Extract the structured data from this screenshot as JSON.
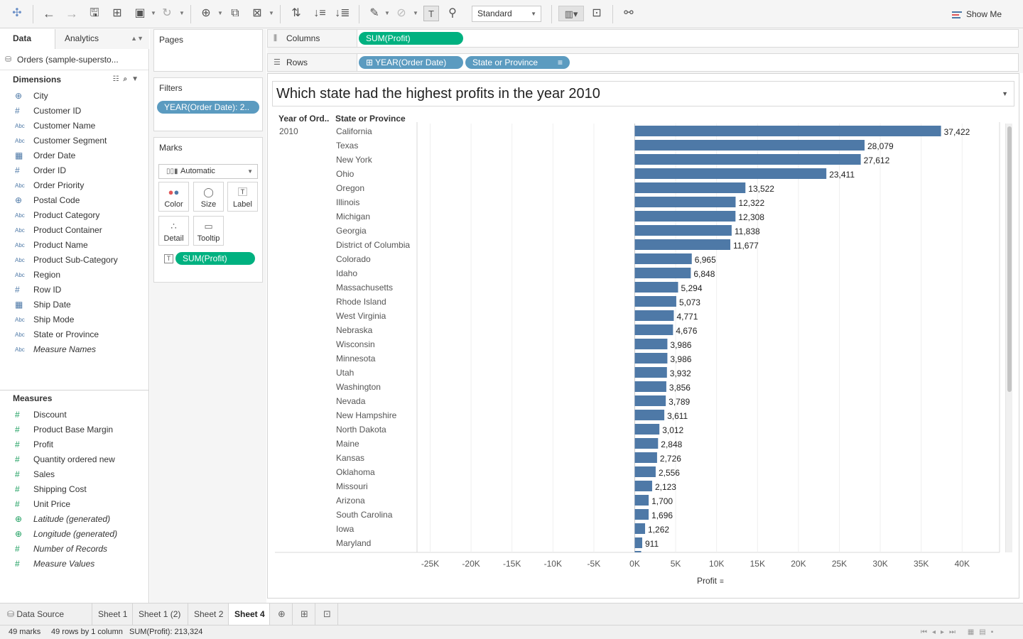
{
  "toolbar": {
    "fit_mode": "Standard",
    "show_me": "Show Me",
    "icons": [
      "tableau-logo-icon",
      "undo-icon",
      "redo-icon",
      "save-icon",
      "new-data-source-icon",
      "pause-updates-icon",
      "refresh-icon",
      "new-worksheet-icon",
      "duplicate-sheet-icon",
      "clear-sheet-icon",
      "swap-icon",
      "sort-ascending-icon",
      "sort-descending-icon",
      "highlight-icon",
      "group-icon",
      "show-labels-icon",
      "fix-axes-icon",
      "fit-icon",
      "presentation-icon",
      "share-icon"
    ]
  },
  "data_pane": {
    "tab_data": "Data",
    "tab_analytics": "Analytics",
    "datasource": "Orders (sample-supersto...",
    "dimensions_title": "Dimensions",
    "dimensions": [
      {
        "label": "City",
        "type": "geo"
      },
      {
        "label": "Customer ID",
        "type": "num"
      },
      {
        "label": "Customer Name",
        "type": "abc"
      },
      {
        "label": "Customer Segment",
        "type": "abc"
      },
      {
        "label": "Order Date",
        "type": "date"
      },
      {
        "label": "Order ID",
        "type": "num"
      },
      {
        "label": "Order Priority",
        "type": "abc"
      },
      {
        "label": "Postal Code",
        "type": "geo"
      },
      {
        "label": "Product Category",
        "type": "abc"
      },
      {
        "label": "Product Container",
        "type": "abc"
      },
      {
        "label": "Product Name",
        "type": "abc"
      },
      {
        "label": "Product Sub-Category",
        "type": "abc"
      },
      {
        "label": "Region",
        "type": "abc"
      },
      {
        "label": "Row ID",
        "type": "num"
      },
      {
        "label": "Ship Date",
        "type": "date"
      },
      {
        "label": "Ship Mode",
        "type": "abc"
      },
      {
        "label": "State or Province",
        "type": "abc"
      },
      {
        "label": "Measure Names",
        "type": "abc",
        "italic": true
      }
    ],
    "measures_title": "Measures",
    "measures": [
      {
        "label": "Discount",
        "type": "num"
      },
      {
        "label": "Product Base Margin",
        "type": "num"
      },
      {
        "label": "Profit",
        "type": "num"
      },
      {
        "label": "Quantity ordered new",
        "type": "num"
      },
      {
        "label": "Sales",
        "type": "num"
      },
      {
        "label": "Shipping Cost",
        "type": "num"
      },
      {
        "label": "Unit Price",
        "type": "num"
      },
      {
        "label": "Latitude (generated)",
        "type": "geo",
        "italic": true
      },
      {
        "label": "Longitude (generated)",
        "type": "geo",
        "italic": true
      },
      {
        "label": "Number of Records",
        "type": "num",
        "italic": true
      },
      {
        "label": "Measure Values",
        "type": "num",
        "italic": true
      }
    ]
  },
  "cards": {
    "pages_title": "Pages",
    "filters_title": "Filters",
    "filter_pill": "YEAR(Order Date): 2..",
    "marks_title": "Marks",
    "mark_type": "Automatic",
    "mark_buttons": [
      "Color",
      "Size",
      "Label",
      "Detail",
      "Tooltip"
    ],
    "label_pill": "SUM(Profit)"
  },
  "shelves": {
    "columns_label": "Columns",
    "columns_pill": "SUM(Profit)",
    "rows_label": "Rows",
    "rows_pill_1": "YEAR(Order Date)",
    "rows_pill_2": "State or Province"
  },
  "view": {
    "title": "Which state had the highest profits in the year 2010",
    "header_year": "Year of Ord..",
    "header_state": "State or Province",
    "year_value": "2010"
  },
  "chart_data": {
    "type": "bar",
    "orientation": "horizontal",
    "title": "Which state had the highest profits in the year 2010",
    "xlabel": "Profit",
    "xlim": [
      -27500,
      44000
    ],
    "x_ticks": [
      -25000,
      -20000,
      -15000,
      -10000,
      -5000,
      0,
      5000,
      10000,
      15000,
      20000,
      25000,
      30000,
      35000,
      40000
    ],
    "x_tick_labels": [
      "-25K",
      "-20K",
      "-15K",
      "-10K",
      "-5K",
      "0K",
      "5K",
      "10K",
      "15K",
      "20K",
      "25K",
      "30K",
      "35K",
      "40K"
    ],
    "bar_color": "#4e79a7",
    "categories": [
      "California",
      "Texas",
      "New York",
      "Ohio",
      "Oregon",
      "Illinois",
      "Michigan",
      "Georgia",
      "District of Columbia",
      "Colorado",
      "Idaho",
      "Massachusetts",
      "Rhode Island",
      "West Virginia",
      "Nebraska",
      "Wisconsin",
      "Minnesota",
      "Utah",
      "Washington",
      "Nevada",
      "New Hampshire",
      "North Dakota",
      "Maine",
      "Kansas",
      "Oklahoma",
      "Missouri",
      "Arizona",
      "South Carolina",
      "Iowa",
      "Maryland"
    ],
    "values": [
      37422,
      28079,
      27612,
      23411,
      13522,
      12322,
      12308,
      11838,
      11677,
      6965,
      6848,
      5294,
      5073,
      4771,
      4676,
      3986,
      3986,
      3932,
      3856,
      3789,
      3611,
      3012,
      2848,
      2726,
      2556,
      2123,
      1700,
      1696,
      1262,
      911
    ],
    "value_labels": [
      "37,422",
      "28,079",
      "27,612",
      "23,411",
      "13,522",
      "12,322",
      "12,308",
      "11,838",
      "11,677",
      "6,965",
      "6,848",
      "5,294",
      "5,073",
      "4,771",
      "4,676",
      "3,986",
      "3,986",
      "3,932",
      "3,856",
      "3,789",
      "3,611",
      "3,012",
      "2,848",
      "2,726",
      "2,556",
      "2,123",
      "1,700",
      "1,696",
      "1,262",
      "911"
    ],
    "grid": true
  },
  "sheet_tabs": {
    "data_source": "Data Source",
    "tabs": [
      "Sheet 1",
      "Sheet 1 (2)",
      "Sheet 2",
      "Sheet 4"
    ],
    "active": "Sheet 4"
  },
  "status": {
    "marks": "49 marks",
    "rows": "49 rows by 1 column",
    "sum": "SUM(Profit): 213,324"
  }
}
